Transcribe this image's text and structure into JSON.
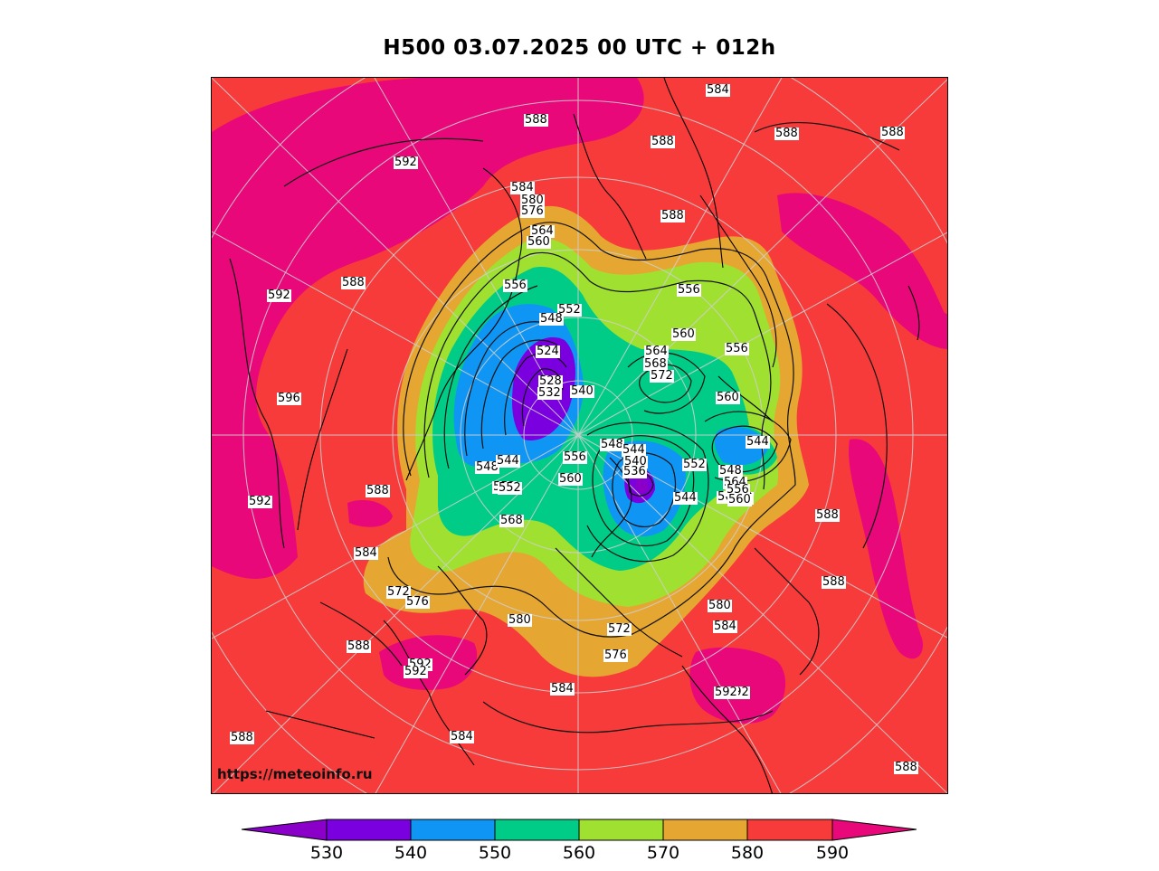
{
  "title": "H500  03.07.2025 00 UTC + 012h",
  "watermark": "https://meteoinfo.ru",
  "colorbar": {
    "ticks": [
      "530",
      "540",
      "550",
      "560",
      "570",
      "580",
      "590"
    ],
    "colors": {
      "below_530": "#8a00c8",
      "530_540": "#7b00e0",
      "540_550": "#0f96f5",
      "550_560": "#00cc88",
      "560_570": "#a0e030",
      "570_580": "#e6a632",
      "580_590": "#f73b3b",
      "above_590": "#e8087a"
    }
  },
  "contour_labels": [
    "584",
    "588",
    "588",
    "588",
    "592",
    "584",
    "580",
    "576",
    "564",
    "560",
    "556",
    "556",
    "552",
    "548",
    "524",
    "528",
    "532",
    "540",
    "564",
    "568",
    "572",
    "560",
    "556",
    "560",
    "544",
    "548",
    "544",
    "552",
    "548",
    "544",
    "540",
    "536",
    "556",
    "560",
    "548",
    "552",
    "564",
    "560",
    "568",
    "544",
    "552",
    "556",
    "560",
    "568",
    "592",
    "588",
    "588",
    "592",
    "588",
    "596",
    "592",
    "588",
    "584",
    "572",
    "576",
    "580",
    "572",
    "576",
    "580",
    "584",
    "588",
    "592",
    "592",
    "588",
    "584",
    "584",
    "588",
    "592",
    "588",
    "588"
  ],
  "map_colors": {
    "background": "#f73b3b",
    "grid": "#c8c8c8",
    "coast": "#000000"
  }
}
